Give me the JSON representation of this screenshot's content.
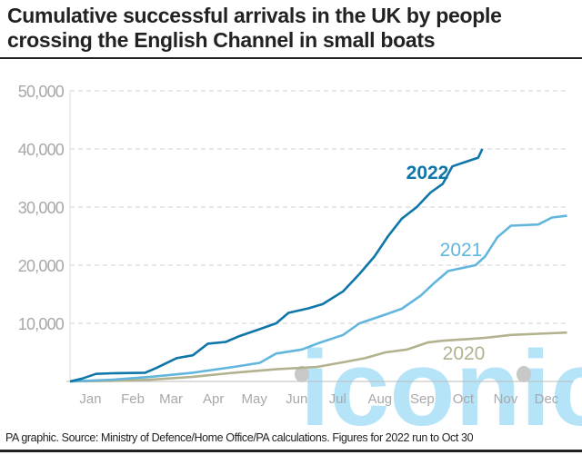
{
  "chart_data": {
    "type": "line",
    "title": "Cumulative successful arrivals in the UK by people crossing the English Channel in small boats",
    "xlabel": "",
    "ylabel": "",
    "ylim": [
      0,
      50000
    ],
    "yticks": [
      "50,000",
      "40,000",
      "30,000",
      "20,000",
      "10,000"
    ],
    "ytick_values": [
      50000,
      40000,
      30000,
      20000,
      10000
    ],
    "xticks": [
      "Jan",
      "Feb",
      "Mar",
      "Apr",
      "May",
      "Jun",
      "Jul",
      "Aug",
      "Sep",
      "Oct",
      "Nov",
      "Dec"
    ],
    "grid": true,
    "series": [
      {
        "name": "2022",
        "color": "#0e76a8",
        "x": [
          "01-01",
          "01-10",
          "01-20",
          "02-01",
          "02-25",
          "03-05",
          "03-20",
          "04-01",
          "04-12",
          "04-25",
          "05-05",
          "05-20",
          "06-01",
          "06-10",
          "06-25",
          "07-05",
          "07-20",
          "08-01",
          "08-12",
          "08-22",
          "09-01",
          "09-12",
          "09-22",
          "10-01",
          "10-08",
          "10-18",
          "10-27",
          "10-30"
        ],
        "y": [
          0,
          500,
          1300,
          1400,
          1500,
          2300,
          4000,
          4500,
          6500,
          6800,
          7800,
          9000,
          10000,
          11800,
          12600,
          13300,
          15500,
          18500,
          21500,
          25000,
          28000,
          30000,
          32500,
          34000,
          37000,
          37800,
          38500,
          40000
        ]
      },
      {
        "name": "2021",
        "color": "#62b5dc",
        "x": [
          "01-01",
          "02-01",
          "03-01",
          "04-01",
          "05-01",
          "05-20",
          "06-01",
          "06-20",
          "07-01",
          "07-20",
          "08-01",
          "08-20",
          "09-01",
          "09-15",
          "09-25",
          "10-05",
          "10-25",
          "11-01",
          "11-10",
          "11-20",
          "12-10",
          "12-20",
          "12-31"
        ],
        "y": [
          0,
          300,
          800,
          1500,
          2500,
          3200,
          4800,
          5500,
          6500,
          8000,
          10000,
          11500,
          12500,
          14800,
          17000,
          19000,
          20000,
          21500,
          24800,
          26800,
          27000,
          28200,
          28500
        ]
      },
      {
        "name": "2020",
        "color": "#b3b28f",
        "x": [
          "01-01",
          "02-01",
          "03-01",
          "04-01",
          "05-01",
          "06-01",
          "07-01",
          "07-20",
          "08-05",
          "08-20",
          "09-05",
          "09-20",
          "10-01",
          "10-20",
          "11-01",
          "11-20",
          "12-10",
          "12-31"
        ],
        "y": [
          0,
          100,
          300,
          800,
          1500,
          2100,
          2500,
          3300,
          4000,
          5000,
          5500,
          6700,
          7000,
          7300,
          7500,
          8000,
          8200,
          8400
        ]
      }
    ],
    "labels": [
      "2022",
      "2021",
      "2020"
    ]
  },
  "footer": {
    "source": "PA graphic. Source: Ministry of Defence/Home Office/PA calculations. Figures for 2022 run to Oct 30"
  },
  "watermark": "iconic"
}
